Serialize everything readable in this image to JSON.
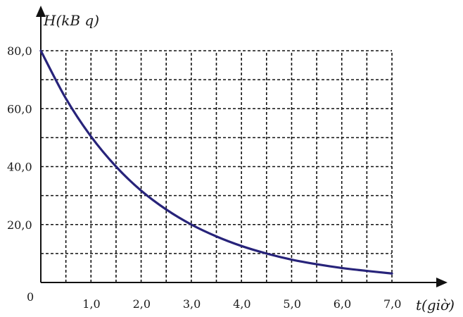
{
  "chart_data": {
    "type": "line",
    "xlabel": "t(giờ)",
    "ylabel": "H(kB q)",
    "origin_label": "0",
    "xlim": [
      0,
      7.0
    ],
    "ylim": [
      0,
      80.0
    ],
    "grid": true,
    "x_ticks": [
      {
        "value": 1.0,
        "label": "1,0"
      },
      {
        "value": 2.0,
        "label": "2,0"
      },
      {
        "value": 3.0,
        "label": "3,0"
      },
      {
        "value": 4.0,
        "label": "4,0"
      },
      {
        "value": 5.0,
        "label": "5,0"
      },
      {
        "value": 6.0,
        "label": "6,0"
      },
      {
        "value": 7.0,
        "label": "7,0"
      }
    ],
    "y_ticks": [
      {
        "value": 20.0,
        "label": "20,0"
      },
      {
        "value": 40.0,
        "label": "40,0"
      },
      {
        "value": 60.0,
        "label": "60,0"
      },
      {
        "value": 80.0,
        "label": "80,0"
      }
    ],
    "x_grid_step": 0.5,
    "y_grid_step": 10.0,
    "series": [
      {
        "color": "#27237a",
        "x": [
          0,
          0.5,
          1.0,
          1.5,
          2.0,
          2.5,
          3.0,
          3.5,
          4.0,
          4.5,
          5.0,
          5.5,
          6.0,
          6.5,
          7.0
        ],
        "y": [
          80.0,
          63.5,
          50.4,
          40.0,
          31.7,
          25.2,
          20.0,
          15.9,
          12.6,
          10.0,
          7.9,
          6.3,
          5.0,
          4.0,
          3.1
        ]
      }
    ]
  }
}
